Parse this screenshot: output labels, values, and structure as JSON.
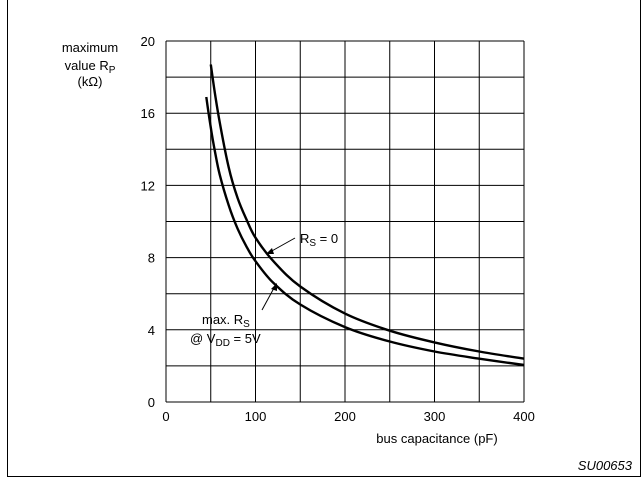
{
  "chart_data": {
    "type": "line",
    "ylabel": [
      "maximum",
      "value R",
      "P",
      "(kΩ)"
    ],
    "xlabel": "bus capacitance (pF)",
    "xlim": [
      0,
      400
    ],
    "ylim": [
      0,
      20
    ],
    "xticks": [
      0,
      100,
      200,
      300,
      400
    ],
    "yticks": [
      0,
      4,
      8,
      12,
      16,
      20
    ],
    "grid": true,
    "series": [
      {
        "name": "RS = 0",
        "x": [
          50,
          55,
          60,
          70,
          80,
          90,
          100,
          120,
          150,
          200,
          250,
          300,
          350,
          400
        ],
        "y": [
          18.7,
          17.0,
          15.5,
          13.0,
          11.3,
          10.1,
          9.1,
          7.8,
          6.4,
          4.9,
          3.95,
          3.3,
          2.8,
          2.4
        ]
      },
      {
        "name": "max. RS @ VDD = 5V",
        "x": [
          45,
          50,
          55,
          60,
          70,
          80,
          90,
          100,
          120,
          150,
          200,
          250,
          300,
          350,
          400
        ],
        "y": [
          16.9,
          15.2,
          13.8,
          12.6,
          10.9,
          9.6,
          8.6,
          7.8,
          6.6,
          5.4,
          4.15,
          3.35,
          2.8,
          2.4,
          2.05
        ]
      }
    ],
    "annotations": {
      "rs_zero": {
        "main": "R",
        "sub": "S",
        "tail": " = 0"
      },
      "max_rs": {
        "line1_main": "max. R",
        "line1_sub": "S",
        "line2_pre": "@ V",
        "line2_sub": "DD",
        "line2_tail": " = 5V"
      }
    },
    "figure_code": "SU00653"
  }
}
